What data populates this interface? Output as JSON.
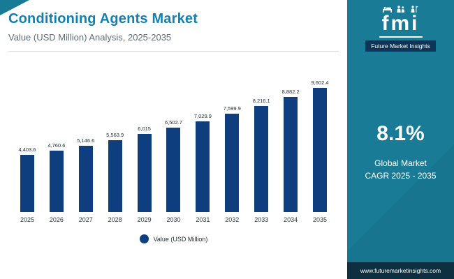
{
  "header": {
    "title": "Conditioning Agents Market",
    "subtitle": "Value (USD Million) Analysis, 2025-2035"
  },
  "chart_data": {
    "type": "bar",
    "title": "Conditioning Agents Market",
    "subtitle": "Value (USD Million) Analysis, 2025-2035",
    "categories": [
      "2025",
      "2026",
      "2027",
      "2028",
      "2029",
      "2030",
      "2031",
      "2032",
      "2033",
      "2034",
      "2035"
    ],
    "values": [
      4403.6,
      4760.6,
      5146.6,
      5563.9,
      6015,
      6502.7,
      7029.9,
      7599.9,
      8216.1,
      8882.2,
      9602.4
    ],
    "value_labels": [
      "4,403.6",
      "4,760.6",
      "5,146.6",
      "5,563.9",
      "6,015",
      "6,502.7",
      "7,029.9",
      "7,599.9",
      "8,216.1",
      "8,882.2",
      "9,602.4"
    ],
    "xlabel": "",
    "ylabel": "Value (USD Million)",
    "ylim": [
      0,
      9602.4
    ],
    "grid": false,
    "legend_position": "bottom",
    "bar_color": "#0e3e7d"
  },
  "legend": {
    "label": "Value (USD Million)"
  },
  "sidebar": {
    "logo_text": "fmi",
    "brand": "Future Market Insights",
    "cagr_value": "8.1%",
    "cagr_line1": "Global Market",
    "cagr_line2": "CAGR 2025 - 2035",
    "website": "www.futuremarketinsights.com",
    "colors": {
      "sidebar_bg": "#197b95",
      "brand_strip": "#0d3557",
      "site_strip": "#0e2f40",
      "title_accent": "#1180b3",
      "bar": "#0e3e7d"
    }
  }
}
